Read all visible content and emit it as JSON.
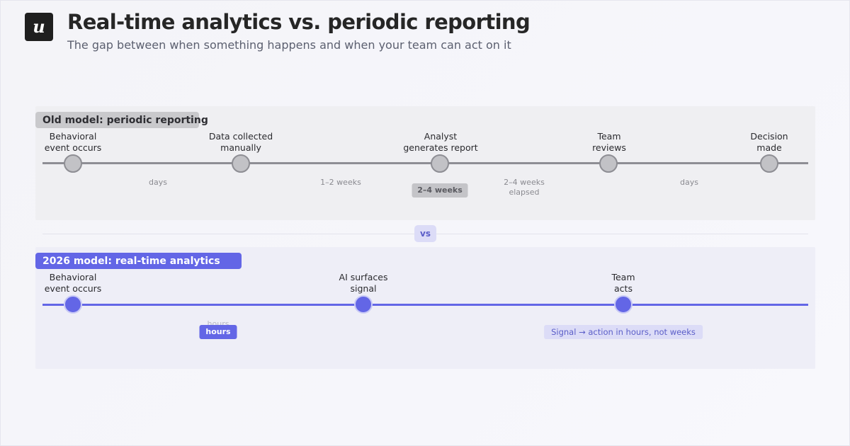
{
  "header": {
    "logo_letter": "u",
    "title": "Real-time analytics vs. periodic reporting",
    "subtitle": "The gap between when something happens and when your team can act on it"
  },
  "old_model": {
    "label": "Old model: periodic reporting",
    "steps": [
      {
        "line1": "Behavioral",
        "line2": "event occurs"
      },
      {
        "line1": "Data collected",
        "line2": "manually"
      },
      {
        "line1": "Analyst",
        "line2": "generates report"
      },
      {
        "line1": "Team",
        "line2": "reviews"
      },
      {
        "line1": "Decision",
        "line2": "made"
      }
    ],
    "gaps": [
      {
        "line1": "days"
      },
      {
        "line1": "1–2 weeks"
      },
      {
        "line1": "2–4 weeks",
        "line2": "elapsed"
      },
      {
        "line1": "days"
      }
    ],
    "highlight": "2–4 weeks"
  },
  "divider": {
    "vs_label": "vs"
  },
  "new_model": {
    "label": "2026 model: real-time analytics",
    "steps": [
      {
        "line1": "Behavioral",
        "line2": "event occurs"
      },
      {
        "line1": "AI surfaces",
        "line2": "signal"
      },
      {
        "line1": "Team",
        "line2": "acts"
      }
    ],
    "gap_faint": "hours",
    "highlight": "hours",
    "note": "Signal → action in hours, not weeks"
  },
  "colors": {
    "accent": "#6366e6",
    "old_gray": "#8e8e94",
    "old_node": "#c2c2c6",
    "logo_bg": "#1f1f1f"
  }
}
